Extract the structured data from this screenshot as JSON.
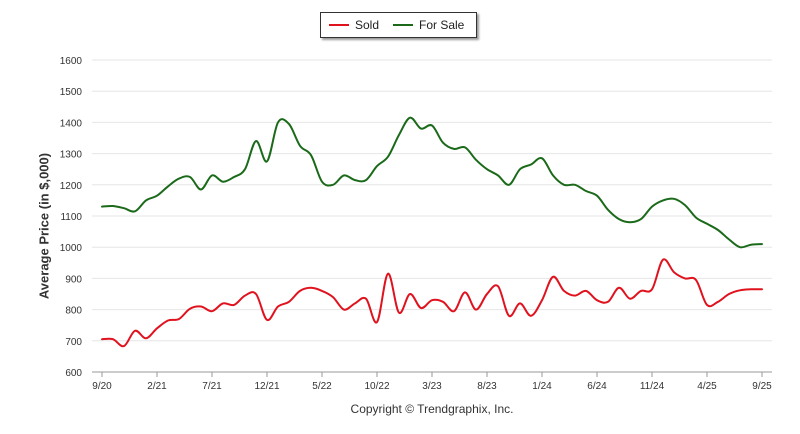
{
  "legend": {
    "sold_label": "Sold",
    "for_sale_label": "For Sale"
  },
  "copyright": "Copyright © Trendgraphix, Inc.",
  "colors": {
    "sold": "#e0121e",
    "for_sale": "#1a6a1a",
    "grid": "#e6e6e6",
    "axis_text": "#333333"
  },
  "chart_data": {
    "type": "line",
    "title": "",
    "xlabel": "",
    "ylabel": "Average Price (in $,000)",
    "ylim": [
      600,
      1600
    ],
    "yticks": [
      600,
      700,
      800,
      900,
      1000,
      1100,
      1200,
      1300,
      1400,
      1500,
      1600
    ],
    "x_range": [
      0,
      60
    ],
    "x_ticks": [
      {
        "label": "9/20",
        "index": 0
      },
      {
        "label": "2/21",
        "index": 5
      },
      {
        "label": "7/21",
        "index": 10
      },
      {
        "label": "12/21",
        "index": 15
      },
      {
        "label": "5/22",
        "index": 20
      },
      {
        "label": "10/22",
        "index": 25
      },
      {
        "label": "3/23",
        "index": 30
      },
      {
        "label": "8/23",
        "index": 35
      },
      {
        "label": "1/24",
        "index": 40
      },
      {
        "label": "6/24",
        "index": 45
      },
      {
        "label": "11/24",
        "index": 50
      },
      {
        "label": "4/25",
        "index": 55
      },
      {
        "label": "9/25",
        "index": 60
      }
    ],
    "series": [
      {
        "name": "Sold",
        "color": "#e0121e",
        "values": [
          705,
          705,
          683,
          732,
          708,
          740,
          765,
          770,
          803,
          810,
          795,
          820,
          815,
          845,
          850,
          767,
          810,
          825,
          860,
          870,
          860,
          840,
          800,
          820,
          835,
          760,
          915,
          790,
          850,
          805,
          830,
          825,
          795,
          855,
          800,
          850,
          875,
          780,
          820,
          780,
          830,
          905,
          860,
          845,
          860,
          830,
          825,
          870,
          835,
          860,
          865,
          960,
          920,
          900,
          895,
          815,
          825,
          850,
          862,
          865,
          865
        ]
      },
      {
        "name": "For Sale",
        "color": "#1a6a1a",
        "values": [
          1130,
          1132,
          1125,
          1115,
          1150,
          1165,
          1195,
          1220,
          1225,
          1185,
          1230,
          1210,
          1225,
          1250,
          1340,
          1275,
          1400,
          1395,
          1325,
          1295,
          1210,
          1200,
          1230,
          1215,
          1215,
          1260,
          1290,
          1360,
          1415,
          1380,
          1390,
          1335,
          1315,
          1320,
          1280,
          1250,
          1230,
          1200,
          1250,
          1265,
          1285,
          1230,
          1200,
          1200,
          1180,
          1165,
          1120,
          1090,
          1080,
          1090,
          1130,
          1150,
          1155,
          1135,
          1095,
          1075,
          1055,
          1025,
          1000,
          1008,
          1010
        ]
      }
    ]
  }
}
